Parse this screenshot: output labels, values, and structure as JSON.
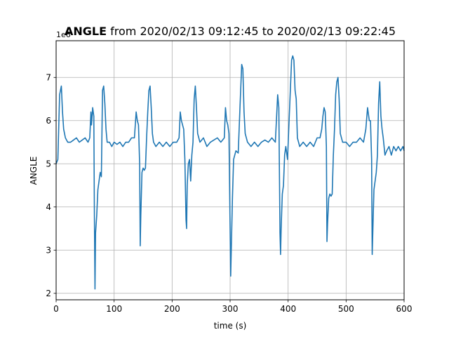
{
  "chart_data": {
    "type": "line",
    "title_bold": "ANGLE",
    "title_rest": " from 2020/02/13 09:12:45 to 2020/02/13 09:22:45",
    "xlabel": "time (s)",
    "ylabel": "ANGLE",
    "y_offset_label": "1e6",
    "xlim": [
      0,
      600
    ],
    "ylim": [
      1.85,
      7.85
    ],
    "xticks": [
      0,
      100,
      200,
      300,
      400,
      500,
      600
    ],
    "yticks": [
      2,
      3,
      4,
      5,
      6,
      7
    ],
    "grid": true,
    "series": [
      {
        "color": "#1f77b4",
        "points": [
          [
            0,
            5.0
          ],
          [
            3,
            5.1
          ],
          [
            6,
            6.6
          ],
          [
            9,
            6.8
          ],
          [
            11,
            6.2
          ],
          [
            13,
            5.8
          ],
          [
            16,
            5.6
          ],
          [
            20,
            5.5
          ],
          [
            25,
            5.5
          ],
          [
            30,
            5.55
          ],
          [
            35,
            5.6
          ],
          [
            40,
            5.5
          ],
          [
            45,
            5.55
          ],
          [
            50,
            5.6
          ],
          [
            55,
            5.5
          ],
          [
            58,
            5.6
          ],
          [
            60,
            6.2
          ],
          [
            61,
            5.9
          ],
          [
            63,
            6.3
          ],
          [
            65,
            6.1
          ],
          [
            66,
            3.8
          ],
          [
            67,
            2.1
          ],
          [
            68,
            3.4
          ],
          [
            70,
            3.8
          ],
          [
            72,
            4.4
          ],
          [
            74,
            4.6
          ],
          [
            76,
            4.8
          ],
          [
            78,
            4.7
          ],
          [
            80,
            6.7
          ],
          [
            82,
            6.8
          ],
          [
            84,
            6.4
          ],
          [
            86,
            5.8
          ],
          [
            88,
            5.5
          ],
          [
            92,
            5.5
          ],
          [
            96,
            5.4
          ],
          [
            100,
            5.5
          ],
          [
            105,
            5.45
          ],
          [
            110,
            5.5
          ],
          [
            115,
            5.4
          ],
          [
            120,
            5.5
          ],
          [
            125,
            5.5
          ],
          [
            130,
            5.6
          ],
          [
            135,
            5.6
          ],
          [
            138,
            6.2
          ],
          [
            140,
            6.0
          ],
          [
            142,
            5.9
          ],
          [
            144,
            5.0
          ],
          [
            145,
            3.1
          ],
          [
            146,
            3.8
          ],
          [
            148,
            4.8
          ],
          [
            150,
            4.9
          ],
          [
            152,
            4.85
          ],
          [
            154,
            4.9
          ],
          [
            156,
            5.6
          ],
          [
            158,
            6.2
          ],
          [
            160,
            6.7
          ],
          [
            162,
            6.8
          ],
          [
            164,
            6.3
          ],
          [
            166,
            5.7
          ],
          [
            168,
            5.5
          ],
          [
            172,
            5.4
          ],
          [
            178,
            5.5
          ],
          [
            184,
            5.4
          ],
          [
            190,
            5.5
          ],
          [
            196,
            5.4
          ],
          [
            202,
            5.5
          ],
          [
            208,
            5.5
          ],
          [
            212,
            5.6
          ],
          [
            214,
            6.2
          ],
          [
            216,
            6.0
          ],
          [
            218,
            5.9
          ],
          [
            220,
            5.8
          ],
          [
            222,
            5.1
          ],
          [
            224,
            3.7
          ],
          [
            225,
            3.5
          ],
          [
            226,
            4.5
          ],
          [
            228,
            5.0
          ],
          [
            230,
            5.1
          ],
          [
            232,
            4.6
          ],
          [
            234,
            5.2
          ],
          [
            236,
            5.5
          ],
          [
            238,
            6.5
          ],
          [
            240,
            6.8
          ],
          [
            242,
            6.3
          ],
          [
            244,
            5.7
          ],
          [
            248,
            5.5
          ],
          [
            254,
            5.6
          ],
          [
            260,
            5.4
          ],
          [
            266,
            5.5
          ],
          [
            272,
            5.55
          ],
          [
            278,
            5.6
          ],
          [
            284,
            5.5
          ],
          [
            290,
            5.6
          ],
          [
            292,
            6.3
          ],
          [
            294,
            6.0
          ],
          [
            296,
            5.9
          ],
          [
            298,
            5.7
          ],
          [
            300,
            3.5
          ],
          [
            301,
            2.4
          ],
          [
            302,
            3.0
          ],
          [
            304,
            4.2
          ],
          [
            306,
            5.1
          ],
          [
            308,
            5.2
          ],
          [
            310,
            5.3
          ],
          [
            314,
            5.25
          ],
          [
            317,
            6.3
          ],
          [
            320,
            7.3
          ],
          [
            322,
            7.2
          ],
          [
            324,
            6.2
          ],
          [
            326,
            5.7
          ],
          [
            330,
            5.5
          ],
          [
            336,
            5.4
          ],
          [
            342,
            5.5
          ],
          [
            348,
            5.4
          ],
          [
            354,
            5.5
          ],
          [
            360,
            5.55
          ],
          [
            366,
            5.5
          ],
          [
            372,
            5.6
          ],
          [
            378,
            5.5
          ],
          [
            382,
            6.6
          ],
          [
            384,
            6.3
          ],
          [
            386,
            3.4
          ],
          [
            387,
            2.9
          ],
          [
            388,
            3.5
          ],
          [
            390,
            4.3
          ],
          [
            392,
            4.5
          ],
          [
            394,
            5.2
          ],
          [
            396,
            5.4
          ],
          [
            399,
            5.1
          ],
          [
            402,
            6.1
          ],
          [
            406,
            7.4
          ],
          [
            408,
            7.5
          ],
          [
            410,
            7.4
          ],
          [
            412,
            6.7
          ],
          [
            414,
            6.5
          ],
          [
            416,
            5.6
          ],
          [
            420,
            5.4
          ],
          [
            426,
            5.5
          ],
          [
            432,
            5.4
          ],
          [
            438,
            5.5
          ],
          [
            444,
            5.4
          ],
          [
            450,
            5.6
          ],
          [
            455,
            5.6
          ],
          [
            458,
            5.8
          ],
          [
            460,
            6.1
          ],
          [
            462,
            6.3
          ],
          [
            464,
            6.2
          ],
          [
            466,
            5.4
          ],
          [
            467,
            3.2
          ],
          [
            468,
            3.6
          ],
          [
            470,
            4.2
          ],
          [
            472,
            4.3
          ],
          [
            474,
            4.25
          ],
          [
            476,
            4.3
          ],
          [
            478,
            5.2
          ],
          [
            480,
            5.8
          ],
          [
            482,
            6.6
          ],
          [
            484,
            6.9
          ],
          [
            486,
            7.0
          ],
          [
            488,
            6.5
          ],
          [
            490,
            5.7
          ],
          [
            494,
            5.5
          ],
          [
            500,
            5.5
          ],
          [
            506,
            5.4
          ],
          [
            512,
            5.5
          ],
          [
            518,
            5.5
          ],
          [
            524,
            5.6
          ],
          [
            530,
            5.5
          ],
          [
            534,
            5.8
          ],
          [
            537,
            6.3
          ],
          [
            540,
            6.0
          ],
          [
            542,
            6.0
          ],
          [
            544,
            5.1
          ],
          [
            545,
            2.9
          ],
          [
            546,
            3.4
          ],
          [
            548,
            4.4
          ],
          [
            550,
            4.6
          ],
          [
            552,
            4.8
          ],
          [
            554,
            5.2
          ],
          [
            556,
            6.4
          ],
          [
            558,
            6.9
          ],
          [
            560,
            6.1
          ],
          [
            562,
            5.8
          ],
          [
            564,
            5.6
          ],
          [
            567,
            5.2
          ],
          [
            570,
            5.3
          ],
          [
            574,
            5.4
          ],
          [
            578,
            5.2
          ],
          [
            582,
            5.4
          ],
          [
            586,
            5.3
          ],
          [
            590,
            5.4
          ],
          [
            594,
            5.3
          ],
          [
            598,
            5.4
          ],
          [
            600,
            5.3
          ]
        ]
      }
    ]
  }
}
